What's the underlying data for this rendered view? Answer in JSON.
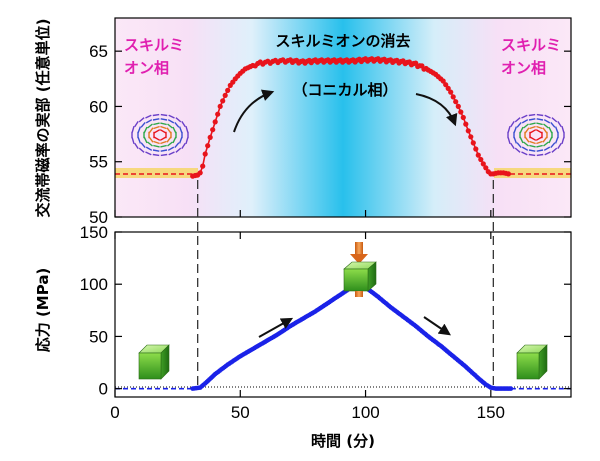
{
  "chart_data": [
    {
      "type": "line",
      "ylabel": "交流帯磁率の実部 (任意単位)",
      "ylim": [
        50,
        68
      ],
      "yticks": [
        50,
        55,
        60,
        65
      ],
      "xlim": [
        0,
        182
      ],
      "annotations": {
        "left_phase": [
          "スキルミ",
          "オン相"
        ],
        "right_phase": [
          "スキルミ",
          "オン相"
        ],
        "center_title": "スキルミオンの消去",
        "center_sub": "（コニカル相）"
      },
      "reference_level": 53.8,
      "series": [
        {
          "color": "#e8141c",
          "x": [
            31,
            33,
            34,
            35,
            36,
            38,
            40,
            42,
            44,
            46,
            48,
            50,
            52,
            55,
            58,
            62,
            66,
            70,
            75,
            80,
            85,
            90,
            95,
            100,
            105,
            110,
            115,
            120,
            125,
            128,
            131,
            134,
            137,
            139,
            141,
            143,
            145,
            147,
            149,
            150,
            151,
            153,
            155,
            157
          ],
          "values": [
            53.7,
            53.8,
            54.0,
            54.6,
            55.7,
            57.2,
            58.6,
            60.0,
            61.0,
            61.9,
            62.5,
            63.0,
            63.4,
            63.7,
            63.9,
            64.0,
            64.1,
            64.1,
            64.0,
            64.1,
            64.1,
            64.1,
            64.1,
            64.2,
            64.2,
            64.1,
            64.0,
            63.8,
            63.3,
            62.9,
            62.3,
            61.3,
            60.0,
            59.0,
            57.8,
            56.7,
            55.6,
            54.8,
            54.1,
            53.9,
            53.9,
            54.0,
            54.0,
            53.9
          ]
        }
      ]
    },
    {
      "type": "line",
      "ylabel": "応力 (MPa)",
      "xlabel": "時間 (分)",
      "ylim": [
        -8,
        150
      ],
      "yticks": [
        0,
        50,
        100,
        150
      ],
      "xlim": [
        0,
        182
      ],
      "xticks": [
        0,
        50,
        100,
        150
      ],
      "series": [
        {
          "color": "#1a22e8",
          "x": [
            0,
            31,
            34,
            36,
            40,
            45,
            50,
            55,
            60,
            65,
            70,
            75,
            80,
            85,
            90,
            95,
            97,
            100,
            105,
            110,
            115,
            120,
            125,
            130,
            135,
            140,
            145,
            148,
            150,
            152,
            155,
            158,
            182
          ],
          "values": [
            0,
            0,
            1,
            5,
            14,
            23,
            31,
            38,
            45,
            52,
            60,
            67,
            74,
            82,
            90,
            98,
            100,
            97,
            88,
            78,
            69,
            60,
            50,
            41,
            31,
            21,
            10,
            4,
            1,
            0,
            0,
            0,
            0
          ]
        }
      ]
    }
  ],
  "dividers_x": [
    33,
    151
  ]
}
